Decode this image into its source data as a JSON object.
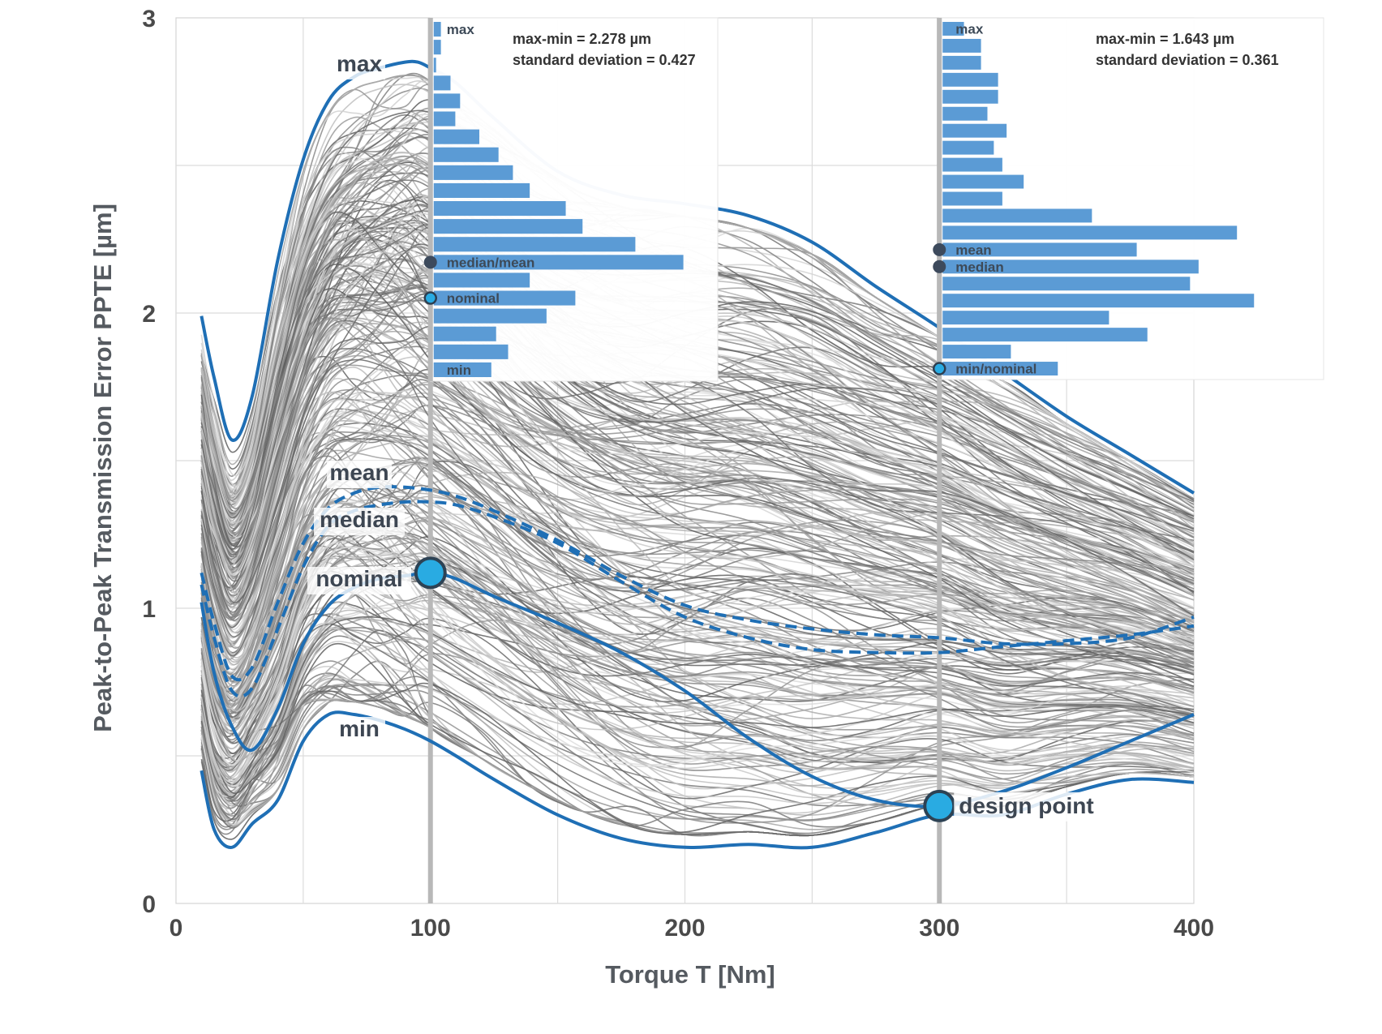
{
  "chart_data": {
    "type": "line",
    "xlabel": "Torque T [Nm]",
    "ylabel": "Peak-to-Peak Transmission Error PPTE [µm]",
    "xlim": [
      0,
      400
    ],
    "ylim": [
      0,
      3
    ],
    "x_ticks": [
      "0",
      "100",
      "200",
      "300",
      "400"
    ],
    "y_ticks": [
      "0",
      "1",
      "2",
      "3"
    ],
    "grid": true,
    "ensemble": {
      "count": 340,
      "color_range": [
        "#5c5c5c",
        "#e0e0e0"
      ]
    },
    "series": [
      {
        "name": "max",
        "style": "solid",
        "color": "#1f6fb5",
        "x": [
          10,
          15,
          22,
          30,
          40,
          50,
          60,
          70,
          80,
          90,
          95,
          100,
          110,
          125,
          150,
          175,
          200,
          225,
          250,
          275,
          300,
          325,
          350,
          375,
          400
        ],
        "y": [
          1.99,
          1.78,
          1.57,
          1.72,
          2.18,
          2.52,
          2.72,
          2.8,
          2.83,
          2.85,
          2.85,
          2.83,
          2.78,
          2.66,
          2.48,
          2.4,
          2.37,
          2.33,
          2.24,
          2.09,
          1.95,
          1.8,
          1.65,
          1.52,
          1.39
        ]
      },
      {
        "name": "mean",
        "style": "dashed",
        "color": "#1f6fb5",
        "x": [
          10,
          15,
          22,
          30,
          40,
          50,
          60,
          70,
          80,
          90,
          100,
          110,
          125,
          150,
          175,
          200,
          225,
          250,
          275,
          300,
          325,
          350,
          375,
          400
        ],
        "y": [
          1.12,
          0.95,
          0.77,
          0.8,
          1.02,
          1.22,
          1.34,
          1.39,
          1.41,
          1.41,
          1.4,
          1.38,
          1.33,
          1.23,
          1.11,
          1.01,
          0.96,
          0.93,
          0.91,
          0.9,
          0.88,
          0.88,
          0.9,
          0.97
        ]
      },
      {
        "name": "median",
        "style": "dashed",
        "color": "#1f6fb5",
        "x": [
          10,
          15,
          22,
          30,
          40,
          50,
          60,
          70,
          80,
          90,
          100,
          110,
          125,
          150,
          175,
          200,
          225,
          250,
          275,
          300,
          325,
          350,
          375,
          400
        ],
        "y": [
          1.08,
          0.9,
          0.72,
          0.73,
          0.93,
          1.14,
          1.28,
          1.33,
          1.35,
          1.36,
          1.36,
          1.35,
          1.31,
          1.22,
          1.09,
          0.97,
          0.9,
          0.86,
          0.85,
          0.85,
          0.87,
          0.89,
          0.91,
          0.94
        ]
      },
      {
        "name": "nominal",
        "style": "solid",
        "color": "#1f6fb5",
        "x": [
          10,
          15,
          22,
          30,
          40,
          50,
          60,
          70,
          80,
          90,
          100,
          110,
          125,
          150,
          175,
          200,
          225,
          250,
          275,
          300,
          325,
          350,
          375,
          400
        ],
        "y": [
          1.02,
          0.78,
          0.6,
          0.52,
          0.66,
          0.88,
          1.01,
          1.07,
          1.1,
          1.11,
          1.12,
          1.1,
          1.04,
          0.95,
          0.85,
          0.72,
          0.56,
          0.43,
          0.35,
          0.33,
          0.38,
          0.46,
          0.55,
          0.64
        ]
      },
      {
        "name": "min",
        "style": "solid",
        "color": "#1f6fb5",
        "x": [
          10,
          15,
          22,
          30,
          40,
          50,
          60,
          70,
          80,
          90,
          100,
          110,
          125,
          150,
          175,
          200,
          225,
          250,
          275,
          300,
          325,
          350,
          375,
          400
        ],
        "y": [
          0.45,
          0.25,
          0.19,
          0.27,
          0.35,
          0.55,
          0.64,
          0.64,
          0.62,
          0.59,
          0.55,
          0.5,
          0.42,
          0.3,
          0.22,
          0.19,
          0.2,
          0.19,
          0.24,
          0.3,
          0.3,
          0.37,
          0.42,
          0.41
        ]
      }
    ],
    "markers": [
      {
        "label": "nominal",
        "x": 100,
        "y": 1.12
      },
      {
        "label": "design point",
        "x": 300,
        "y": 0.33
      }
    ],
    "histograms": [
      {
        "at_x": 100,
        "stats": [
          "max-min = 2.278 µm",
          "standard deviation = 0.427"
        ],
        "bins_top_to_bottom": [
          3,
          3,
          1,
          7,
          11,
          9,
          19,
          27,
          33,
          40,
          55,
          62,
          84,
          104,
          40,
          59,
          47,
          26,
          31,
          24
        ],
        "labels": [
          {
            "bin": 0,
            "text": "max",
            "dot": "none"
          },
          {
            "bin": 13,
            "text": "median/mean",
            "dot": "filled"
          },
          {
            "bin": 15,
            "text": "nominal",
            "dot": "open"
          },
          {
            "bin": 19,
            "text": "min",
            "dot": "none"
          }
        ]
      },
      {
        "at_x": 300,
        "stats": [
          "max-min = 1.643 µm",
          "standard deviation = 0.361"
        ],
        "bins_top_to_bottom": [
          10,
          18,
          18,
          26,
          26,
          21,
          30,
          24,
          28,
          38,
          28,
          70,
          138,
          91,
          120,
          116,
          146,
          78,
          96,
          32,
          54
        ],
        "labels": [
          {
            "bin": 0,
            "text": "max",
            "dot": "none"
          },
          {
            "bin": 13,
            "text": "mean",
            "dot": "filled"
          },
          {
            "bin": 14,
            "text": "median",
            "dot": "filled"
          },
          {
            "bin": 20,
            "text": "min/nominal",
            "dot": "open"
          }
        ]
      }
    ]
  }
}
